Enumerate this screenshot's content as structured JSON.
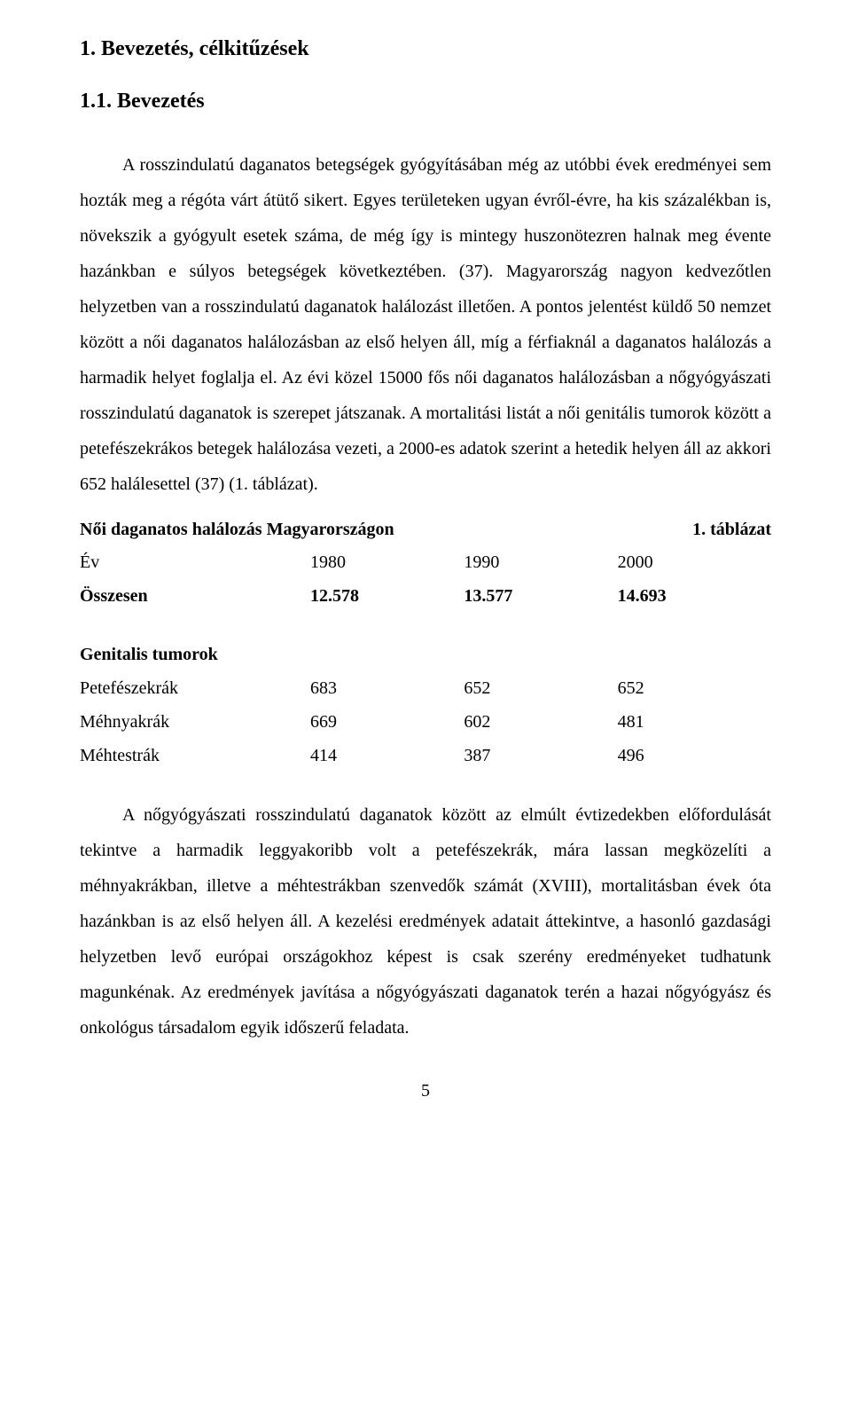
{
  "heading1": "1. Bevezetés, célkitűzések",
  "heading2": "1.1. Bevezetés",
  "paragraph1": "A rosszindulatú daganatos betegségek gyógyításában még az utóbbi évek eredményei sem hozták meg a régóta várt átütő sikert. Egyes területeken ugyan évről-évre, ha kis százalékban is, növekszik a gyógyult esetek száma, de még így is mintegy huszonötezren halnak meg évente hazánkban e súlyos betegségek következtében. (37). Magyarország nagyon kedvezőtlen helyzetben van a rosszindulatú daganatok halálozást illetően. A pontos jelentést küldő 50 nemzet között a női daganatos halálozásban az első helyen áll, míg a férfiaknál a daganatos halálozás a harmadik helyet foglalja el. Az évi közel 15000 fős női daganatos halálozásban a nőgyógyászati rosszindulatú daganatok is szerepet játszanak. A mortalitási listát a női genitális tumorok között a petefészekrákos betegek halálozása vezeti, a 2000-es adatok szerint a hetedik helyen áll az akkori 652 halálesettel (37) (1. táblázat).",
  "table": {
    "title_left": "Női daganatos halálozás Magyarországon",
    "title_right": "1. táblázat",
    "header": {
      "label": "Év",
      "c1": "1980",
      "c2": "1990",
      "c3": "2000"
    },
    "total": {
      "label": "Összesen",
      "c1": "12.578",
      "c2": "13.577",
      "c3": "14.693"
    },
    "section_title": "Genitalis tumorok",
    "rows": [
      {
        "label": "Petefészekrák",
        "c1": "683",
        "c2": "652",
        "c3": "652"
      },
      {
        "label": "Méhnyakrák",
        "c1": "669",
        "c2": "602",
        "c3": "481"
      },
      {
        "label": "Méhtestrák",
        "c1": "414",
        "c2": "387",
        "c3": "496"
      }
    ]
  },
  "paragraph2": "A nőgyógyászati rosszindulatú daganatok között az elmúlt évtizedekben előfordulását tekintve a harmadik leggyakoribb volt a petefészekrák, mára lassan megközelíti a méhnyakrákban, illetve a méhtestrákban szenvedők számát (XVIII), mortalitásban évek óta hazánkban is az első helyen áll. A kezelési eredmények adatait áttekintve, a hasonló gazdasági helyzetben levő európai országokhoz képest is csak szerény eredményeket tudhatunk magunkénak. Az eredmények javítása a nőgyógyászati daganatok terén a hazai nőgyógyász és onkológus társadalom egyik időszerű feladata.",
  "page_number": "5"
}
